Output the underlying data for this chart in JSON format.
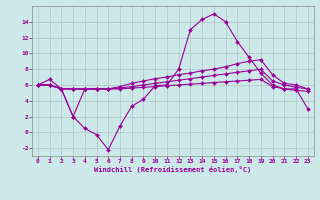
{
  "x": [
    0,
    1,
    2,
    3,
    4,
    5,
    6,
    7,
    8,
    9,
    10,
    11,
    12,
    13,
    14,
    15,
    16,
    17,
    18,
    19,
    20,
    21,
    22,
    23
  ],
  "line_main": [
    6.0,
    6.7,
    5.5,
    2.0,
    0.5,
    -0.3,
    -2.2,
    0.8,
    3.3,
    4.2,
    5.9,
    6.0,
    8.0,
    13.0,
    14.3,
    15.0,
    14.0,
    11.5,
    9.5,
    7.5,
    6.0,
    5.5,
    5.5,
    3.0
  ],
  "line_upper": [
    6.0,
    6.0,
    5.5,
    5.5,
    5.5,
    5.5,
    5.5,
    5.8,
    6.2,
    6.5,
    6.8,
    7.0,
    7.3,
    7.5,
    7.8,
    8.0,
    8.3,
    8.7,
    9.0,
    9.2,
    7.3,
    6.2,
    6.0,
    5.5
  ],
  "line_mid": [
    6.0,
    6.0,
    5.5,
    5.5,
    5.5,
    5.5,
    5.5,
    5.6,
    5.8,
    6.0,
    6.2,
    6.4,
    6.6,
    6.8,
    7.0,
    7.2,
    7.4,
    7.6,
    7.8,
    8.0,
    6.5,
    6.0,
    5.7,
    5.5
  ],
  "line_lower": [
    6.0,
    6.0,
    5.5,
    5.5,
    5.5,
    5.5,
    5.5,
    5.5,
    5.6,
    5.7,
    5.8,
    5.9,
    6.0,
    6.1,
    6.2,
    6.3,
    6.4,
    6.5,
    6.6,
    6.7,
    5.8,
    5.5,
    5.3,
    5.2
  ],
  "line_extra": [
    6.0,
    6.0,
    5.5,
    2.0,
    5.5,
    5.5,
    null,
    null,
    null,
    null,
    null,
    null,
    null,
    null,
    null,
    null,
    null,
    null,
    null,
    null,
    null,
    null,
    null,
    null
  ],
  "line_color": "#990099",
  "bg_color": "#cce8e8",
  "grid_color": "#b0c8c8",
  "ylim": [
    -3,
    16
  ],
  "xlim": [
    -0.5,
    23.5
  ],
  "yticks": [
    -2,
    0,
    2,
    4,
    6,
    8,
    10,
    12,
    14
  ],
  "xticks": [
    0,
    1,
    2,
    3,
    4,
    5,
    6,
    7,
    8,
    9,
    10,
    11,
    12,
    13,
    14,
    15,
    16,
    17,
    18,
    19,
    20,
    21,
    22,
    23
  ],
  "xlabel": "Windchill (Refroidissement éolien,°C)",
  "xlabel_color": "#990099"
}
